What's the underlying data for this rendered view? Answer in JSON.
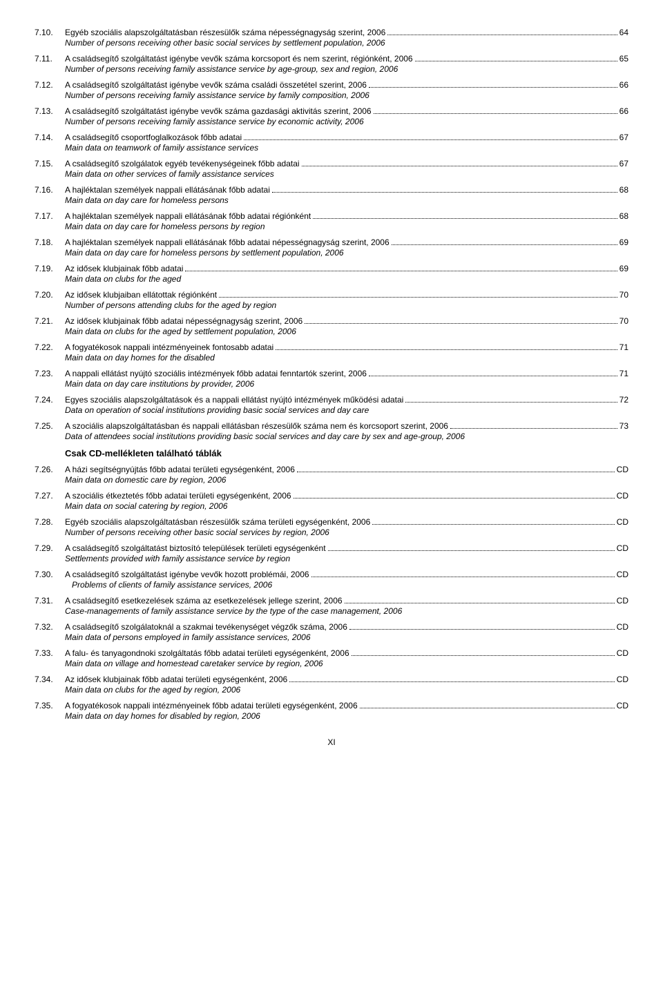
{
  "pageNumber": "XI",
  "sectionHead": "Csak CD-mellékleten található táblák",
  "entries": [
    {
      "num": "7.10.",
      "hu": "Egyéb szociális alapszolgáltatásban részesülők száma népességnagyság szerint, 2006",
      "page": "64",
      "en": "Number of persons receiving other basic social services by settlement population, 2006"
    },
    {
      "num": "7.11.",
      "hu": "A családsegítő szolgáltatást igénybe vevők száma korcsoport és nem szerint, régiónként, 2006",
      "page": "65",
      "en": "Number of persons receiving family assistance service by age-group, sex and region, 2006"
    },
    {
      "num": "7.12.",
      "hu": "A családsegítő szolgáltatást igénybe vevők száma családi összetétel szerint, 2006",
      "page": "66",
      "en": "Number of persons receiving family assistance service by family composition, 2006"
    },
    {
      "num": "7.13.",
      "hu": "A családsegítő szolgáltatást igénybe vevők száma gazdasági aktivitás szerint, 2006",
      "page": "66",
      "en": "Number of persons receiving family assistance service by economic activity, 2006"
    },
    {
      "num": "7.14.",
      "hu": "A családsegítő csoportfoglalkozások főbb adatai",
      "page": "67",
      "en": "Main data on teamwork of family assistance services"
    },
    {
      "num": "7.15.",
      "hu": "A családsegítő szolgálatok egyéb tevékenységeinek főbb adatai",
      "page": "67",
      "en": "Main data on other services of family assistance services"
    },
    {
      "num": "7.16.",
      "hu": "A hajléktalan személyek nappali ellátásának főbb adatai",
      "page": "68",
      "en": "Main data on day care for homeless persons"
    },
    {
      "num": "7.17.",
      "hu": "A hajléktalan személyek nappali ellátásának főbb adatai régiónként",
      "page": "68",
      "en": "Main data on day care for homeless persons by region"
    },
    {
      "num": "7.18.",
      "hu": "A hajléktalan személyek nappali ellátásának főbb adatai népességnagyság szerint, 2006",
      "page": "69",
      "en": "Main data on day care for homeless persons by settlement population, 2006"
    },
    {
      "num": "7.19.",
      "hu": "Az idősek klubjainak főbb adatai",
      "page": "69",
      "en": "Main data on clubs for the aged"
    },
    {
      "num": "7.20.",
      "hu": "Az idősek klubjaiban ellátottak régiónként",
      "page": "70",
      "en": "Number of persons attending clubs for the aged by region"
    },
    {
      "num": "7.21.",
      "hu": "Az idősek klubjainak főbb adatai népességnagyság szerint, 2006",
      "page": "70",
      "en": "Main data on clubs for the aged by settlement population, 2006"
    },
    {
      "num": "7.22.",
      "hu": "A fogyatékosok nappali intézményeinek fontosabb adatai",
      "page": "71",
      "en": "Main data on day homes for the disabled"
    },
    {
      "num": "7.23.",
      "hu": "A nappali ellátást nyújtó szociális intézmények főbb adatai fenntartók szerint, 2006",
      "page": "71",
      "en": "Main data on day care institutions by provider, 2006"
    },
    {
      "num": "7.24.",
      "hu": "Egyes szociális alapszolgáltatások és a nappali ellátást nyújtó intézmények működési adatai",
      "page": "72",
      "en": "Data on operation of social institutions providing basic social services and day care"
    },
    {
      "num": "7.25.",
      "hu": "A szociális alapszolgáltatásban és nappali ellátásban részesülők száma nem és korcsoport szerint, 2006",
      "page": "73",
      "en": "Data of attendees social institutions providing basic social services and day care by sex and age-group, 2006"
    },
    {
      "sectionBreak": true
    },
    {
      "num": "7.26.",
      "hu": "A házi segítségnyújtás főbb adatai területi egységenként, 2006",
      "page": "CD",
      "en": "Main data on domestic care by region, 2006"
    },
    {
      "num": "7.27.",
      "hu": "A szociális étkeztetés főbb adatai területi egységenként, 2006",
      "page": "CD",
      "en": "Main data on social catering by region, 2006"
    },
    {
      "num": "7.28.",
      "hu": "Egyéb szociális alapszolgáltatásban részesülők száma területi egységenként, 2006",
      "page": "CD",
      "en": "Number of persons receiving other basic social services by region, 2006"
    },
    {
      "num": "7.29.",
      "hu": "A családsegítő szolgáltatást biztosító települések területi egységenként",
      "page": "CD",
      "en": "Settlements provided with family assistance service by region"
    },
    {
      "num": "7.30.",
      "hu": "A családsegítő szolgáltatást igénybe vevők hozott problémái, 2006",
      "page": "CD",
      "en": "Problems of clients of family assistance services, 2006",
      "enIndent": true
    },
    {
      "num": "7.31.",
      "hu": "A családsegítő esetkezelések száma az esetkezelések jellege szerint, 2006",
      "page": "CD",
      "en": "Case-managements of family assistance service by the type of the case management, 2006"
    },
    {
      "num": "7.32.",
      "hu": "A családsegítő szolgálatoknál a szakmai tevékenységet végzők száma, 2006",
      "page": "CD",
      "en": "Main data of persons employed in family assistance services, 2006"
    },
    {
      "num": "7.33.",
      "hu": "A falu- és tanyagondnoki szolgáltatás főbb adatai területi egységenként, 2006",
      "page": "CD",
      "en": "Main data on village and homestead caretaker service by region, 2006"
    },
    {
      "num": "7.34.",
      "hu": "Az idősek klubjainak főbb adatai területi egységenként, 2006",
      "page": "CD",
      "en": "Main data on clubs for the aged by region, 2006"
    },
    {
      "num": "7.35.",
      "hu": "A fogyatékosok nappali intézményeinek főbb adatai területi egységenként, 2006",
      "page": "CD",
      "en": "Main data on day homes for disabled by region, 2006"
    }
  ]
}
